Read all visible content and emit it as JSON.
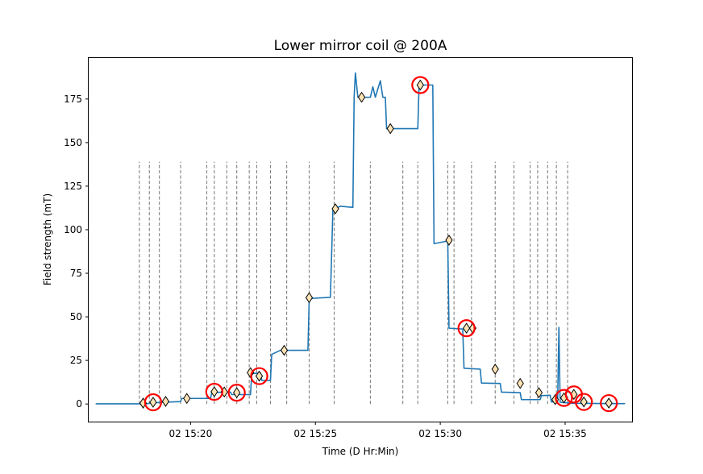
{
  "chart_data": {
    "type": "line",
    "title": "Lower mirror coil @ 200A",
    "xlabel": "Time (D Hr:Min)",
    "ylabel": "Field strength (mT)",
    "x_unit": "minutes after 15:00 on day 02",
    "xlim": [
      15.92,
      37.68
    ],
    "ylim": [
      -10.1,
      198.5
    ],
    "x_ticks": [
      {
        "value": 20,
        "label": "02 15:20"
      },
      {
        "value": 25,
        "label": "02 15:25"
      },
      {
        "value": 30,
        "label": "02 15:30"
      },
      {
        "value": 35,
        "label": "02 15:35"
      }
    ],
    "y_ticks": [
      0,
      25,
      50,
      75,
      100,
      125,
      150,
      175
    ],
    "grid": false,
    "series": [
      {
        "color": "#1f77b4",
        "points": [
          [
            16.2,
            0.1
          ],
          [
            18.2,
            0.1
          ],
          [
            18.5,
            0.6
          ],
          [
            18.9,
            1.0
          ],
          [
            19.3,
            1.2
          ],
          [
            19.6,
            1.4
          ],
          [
            19.65,
            3.2
          ],
          [
            20.8,
            3.2
          ],
          [
            20.85,
            6.5
          ],
          [
            21.3,
            6.8
          ],
          [
            21.6,
            6.8
          ],
          [
            21.65,
            5.4
          ],
          [
            22.4,
            5.4
          ],
          [
            22.45,
            17.5
          ],
          [
            22.8,
            17.8
          ],
          [
            22.85,
            13.5
          ],
          [
            23.2,
            13.5
          ],
          [
            23.25,
            28.5
          ],
          [
            23.6,
            30.8
          ],
          [
            24.7,
            30.8
          ],
          [
            24.75,
            60.5
          ],
          [
            25.6,
            61.2
          ],
          [
            25.7,
            111.5
          ],
          [
            26.0,
            113.5
          ],
          [
            26.5,
            112.8
          ],
          [
            26.55,
            176.0
          ],
          [
            26.6,
            190.0
          ],
          [
            26.7,
            176.0
          ],
          [
            27.2,
            176.0
          ],
          [
            27.3,
            182.0
          ],
          [
            27.4,
            176.0
          ],
          [
            27.6,
            185.5
          ],
          [
            27.7,
            176.0
          ],
          [
            27.8,
            176.0
          ],
          [
            27.85,
            158.0
          ],
          [
            29.1,
            158.0
          ],
          [
            29.15,
            183.0
          ],
          [
            29.7,
            183.0
          ],
          [
            29.75,
            92.0
          ],
          [
            30.3,
            93.5
          ],
          [
            30.35,
            43.5
          ],
          [
            30.9,
            43.0
          ],
          [
            30.95,
            20.5
          ],
          [
            31.6,
            20.0
          ],
          [
            31.65,
            12.0
          ],
          [
            32.4,
            11.8
          ],
          [
            32.45,
            6.8
          ],
          [
            33.2,
            6.5
          ],
          [
            33.25,
            2.5
          ],
          [
            34.0,
            2.5
          ],
          [
            34.05,
            4.8
          ],
          [
            34.4,
            5.0
          ],
          [
            34.45,
            1.2
          ],
          [
            34.7,
            1.2
          ],
          [
            34.75,
            44.0
          ],
          [
            34.8,
            1.0
          ],
          [
            35.3,
            0.4
          ],
          [
            37.4,
            0.2
          ]
        ]
      }
    ],
    "segment_boundaries": [
      17.95,
      18.35,
      18.75,
      19.6,
      20.65,
      20.95,
      21.45,
      21.85,
      22.35,
      22.65,
      23.2,
      23.85,
      24.75,
      25.75,
      27.2,
      28.5,
      29.1,
      30.3,
      30.55,
      31.25,
      32.2,
      32.95,
      33.6,
      33.9,
      34.3,
      34.65,
      35.1
    ],
    "segment_boundary_range": [
      0,
      139
    ],
    "diamond_markers": [
      [
        18.1,
        0.5
      ],
      [
        18.5,
        1.0
      ],
      [
        19.0,
        1.5
      ],
      [
        19.85,
        3.2
      ],
      [
        20.95,
        7.0
      ],
      [
        21.35,
        6.9
      ],
      [
        21.85,
        6.5
      ],
      [
        22.4,
        18.0
      ],
      [
        22.75,
        16.0
      ],
      [
        23.75,
        30.8
      ],
      [
        24.75,
        61.0
      ],
      [
        25.8,
        112.0
      ],
      [
        26.85,
        176.0
      ],
      [
        28.0,
        158.0
      ],
      [
        29.2,
        183.0
      ],
      [
        30.35,
        94.0
      ],
      [
        31.05,
        43.5
      ],
      [
        31.3,
        43.5
      ],
      [
        32.2,
        20.0
      ],
      [
        33.2,
        11.8
      ],
      [
        33.95,
        6.5
      ],
      [
        34.6,
        2.5
      ],
      [
        34.95,
        3.5
      ],
      [
        35.35,
        5.5
      ],
      [
        35.75,
        1.2
      ],
      [
        36.75,
        0.5
      ]
    ],
    "highlighted_markers": [
      [
        18.5,
        1.0
      ],
      [
        20.95,
        7.0
      ],
      [
        21.85,
        6.5
      ],
      [
        22.75,
        16.0
      ],
      [
        29.2,
        183.0
      ],
      [
        31.05,
        43.5
      ],
      [
        34.95,
        3.5
      ],
      [
        35.35,
        5.5
      ],
      [
        35.75,
        1.2
      ],
      [
        36.75,
        0.5
      ]
    ],
    "highlight_color": "#ff0000",
    "marker_fill": "#ffe4b5"
  }
}
